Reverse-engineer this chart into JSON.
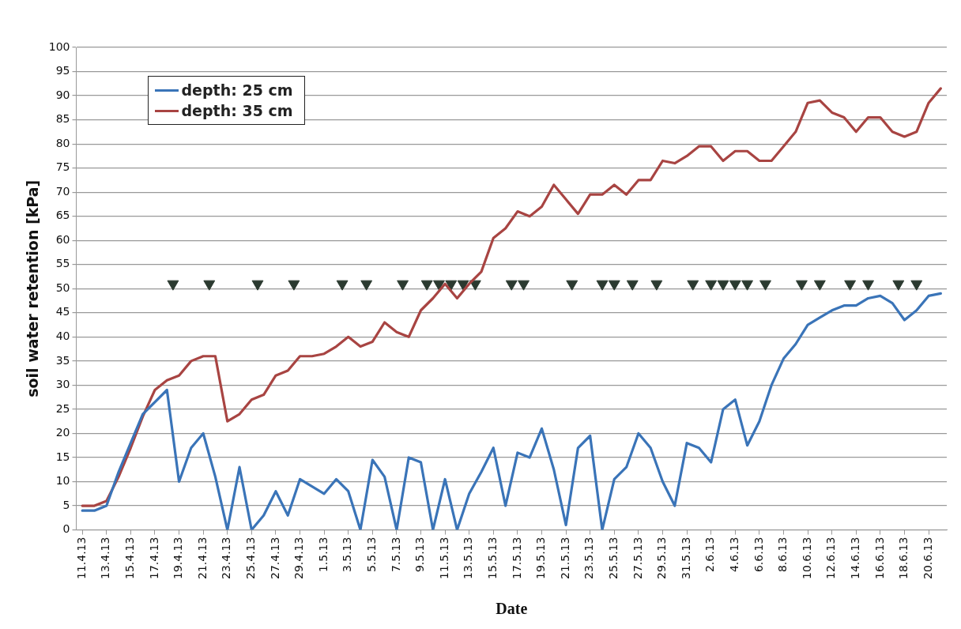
{
  "chart_data": {
    "type": "line",
    "xlabel": "Date",
    "ylabel": "soil water retention [kPa]",
    "x": [
      "--04-11",
      "--04-12",
      "--04-13",
      "--04-14",
      "--04-15",
      "--04-16",
      "--04-17",
      "--04-18",
      "--04-19",
      "--04-20",
      "--04-21",
      "--04-22",
      "--04-23",
      "--04-24",
      "--04-25",
      "--04-26",
      "--04-27",
      "--04-28",
      "--04-29",
      "--04-30",
      "--05-01",
      "--05-02",
      "--05-03",
      "--05-04",
      "--05-05",
      "--05-06",
      "--05-07",
      "--05-08",
      "--05-09",
      "--05-10",
      "--05-11",
      "--05-12",
      "--05-13",
      "--05-14",
      "--05-15",
      "--05-16",
      "--05-17",
      "--05-18",
      "--05-19",
      "--05-20",
      "--05-21",
      "--05-22",
      "--05-23",
      "--05-24",
      "--05-25",
      "--05-26",
      "--05-27",
      "--05-28",
      "--05-29",
      "--05-30",
      "--05-31",
      "--06-01",
      "--06-02",
      "--06-03",
      "--06-04",
      "--06-05",
      "--06-06",
      "--06-07",
      "--06-08",
      "--06-09",
      "--06-10",
      "--06-11",
      "--06-12",
      "--06-13",
      "--06-14",
      "--06-15",
      "--06-16",
      "--06-17",
      "--06-18",
      "--06-19",
      "--06-20",
      "--06-21"
    ],
    "xlim": [
      "--04-10T12:00",
      "--06-21T12:00"
    ],
    "xticks": [
      {
        "value": "--04-11",
        "label": "11.4.13"
      },
      {
        "value": "--04-13",
        "label": "13.4.13"
      },
      {
        "value": "--04-15",
        "label": "15.4.13"
      },
      {
        "value": "--04-17",
        "label": "17.4.13"
      },
      {
        "value": "--04-19",
        "label": "19.4.13"
      },
      {
        "value": "--04-21",
        "label": "21.4.13"
      },
      {
        "value": "--04-23",
        "label": "23.4.13"
      },
      {
        "value": "--04-25",
        "label": "25.4.13"
      },
      {
        "value": "--04-27",
        "label": "27.4.13"
      },
      {
        "value": "--04-29",
        "label": "29.4.13"
      },
      {
        "value": "--05-01",
        "label": "1.5.13"
      },
      {
        "value": "--05-03",
        "label": "3.5.13"
      },
      {
        "value": "--05-05",
        "label": "5.5.13"
      },
      {
        "value": "--05-07",
        "label": "7.5.13"
      },
      {
        "value": "--05-09",
        "label": "9.5.13"
      },
      {
        "value": "--05-11",
        "label": "11.5.13"
      },
      {
        "value": "--05-13",
        "label": "13.5.13"
      },
      {
        "value": "--05-15",
        "label": "15.5.13"
      },
      {
        "value": "--05-17",
        "label": "17.5.13"
      },
      {
        "value": "--05-19",
        "label": "19.5.13"
      },
      {
        "value": "--05-21",
        "label": "21.5.13"
      },
      {
        "value": "--05-23",
        "label": "23.5.13"
      },
      {
        "value": "--05-25",
        "label": "25.5.13"
      },
      {
        "value": "--05-27",
        "label": "27.5.13"
      },
      {
        "value": "--05-29",
        "label": "29.5.13"
      },
      {
        "value": "--05-31",
        "label": "31.5.13"
      },
      {
        "value": "--06-02",
        "label": "2.6.13"
      },
      {
        "value": "--06-04",
        "label": "4.6.13"
      },
      {
        "value": "--06-06",
        "label": "6.6.13"
      },
      {
        "value": "--06-08",
        "label": "8.6.13"
      },
      {
        "value": "--06-10",
        "label": "10.6.13"
      },
      {
        "value": "--06-12",
        "label": "12.6.13"
      },
      {
        "value": "--06-14",
        "label": "14.6.13"
      },
      {
        "value": "--06-16",
        "label": "16.6.13"
      },
      {
        "value": "--06-18",
        "label": "18.6.13"
      },
      {
        "value": "--06-20",
        "label": "20.6.13"
      }
    ],
    "series": [
      {
        "name": "depth: 25 cm",
        "color": "#3a74b8",
        "values": [
          4,
          4,
          5,
          12,
          18,
          24,
          26.5,
          29,
          10,
          17,
          20,
          11,
          0,
          13,
          0,
          3,
          8,
          3,
          10.5,
          9,
          7.5,
          10.5,
          8,
          0,
          14.5,
          11,
          0,
          15,
          14,
          0,
          10.5,
          0,
          7.5,
          12,
          17,
          5,
          16,
          15,
          21,
          12.5,
          1,
          17,
          19.5,
          0,
          10.5,
          13,
          20,
          17,
          10,
          5,
          18,
          17,
          14,
          25,
          27,
          17.5,
          22.5,
          30,
          35.5,
          38.5,
          42.5,
          44,
          45.5,
          46.5,
          46.5,
          48,
          48.5,
          47,
          43.5,
          45.5,
          48.5,
          49
        ]
      },
      {
        "name": "depth: 35 cm",
        "color": "#a84442",
        "values": [
          5,
          5,
          6,
          11,
          17,
          23.5,
          29,
          31,
          32,
          35,
          36,
          36,
          22.5,
          24,
          27,
          28,
          32,
          33,
          36,
          36,
          36.5,
          38,
          40,
          38,
          39,
          43,
          41,
          40,
          45.5,
          48,
          51,
          48,
          51,
          53.5,
          60.5,
          62.5,
          66,
          65,
          67,
          71.5,
          68.5,
          65.5,
          69.5,
          69.5,
          71.5,
          69.5,
          72.5,
          72.5,
          76.5,
          76,
          77.5,
          79.5,
          79.5,
          76.5,
          78.5,
          78.5,
          76.5,
          76.5,
          79.5,
          82.5,
          88.5,
          89,
          86.5,
          85.5,
          82.5,
          85.5,
          85.5,
          82.5,
          81.5,
          82.5,
          88.5,
          91.5
        ]
      },
      {
        "type": "scatter",
        "color": "#2b3a30",
        "marker": "triangle",
        "x": [
          "--04-18T12:00",
          "--04-21T12:00",
          "--04-25T12:00",
          "--04-28T12:00",
          "--05-02T12:00",
          "--05-04T12:00",
          "--05-07T12:00",
          "--05-09T12:00",
          "--05-10T12:00",
          "--05-11T12:00",
          "--05-12T12:00",
          "--05-13T12:00",
          "--05-16T12:00",
          "--05-17T12:00",
          "--05-21T12:00",
          "--05-24",
          "--05-25",
          "--05-26T12:00",
          "--05-28T12:00",
          "--05-31T12:00",
          "--06-02",
          "--06-03",
          "--06-04",
          "--06-05",
          "--06-06T12:00",
          "--06-09T12:00",
          "--06-11",
          "--06-13T12:00",
          "--06-15",
          "--06-17T12:00",
          "--06-19"
        ],
        "values": [
          51,
          51,
          51,
          51,
          51,
          51,
          51,
          51,
          51,
          51,
          51,
          51,
          51,
          51,
          51,
          51,
          51,
          51,
          51,
          51,
          51,
          51,
          51,
          51,
          51,
          51,
          51,
          51,
          51,
          51,
          51
        ]
      }
    ],
    "ylim": [
      0,
      100
    ],
    "yticks": [
      0,
      5,
      10,
      15,
      20,
      25,
      30,
      35,
      40,
      45,
      50,
      55,
      60,
      65,
      70,
      75,
      80,
      85,
      90,
      95,
      100
    ],
    "grid": "y",
    "legend": "top left",
    "marker": "none",
    "line_style": "solid"
  }
}
